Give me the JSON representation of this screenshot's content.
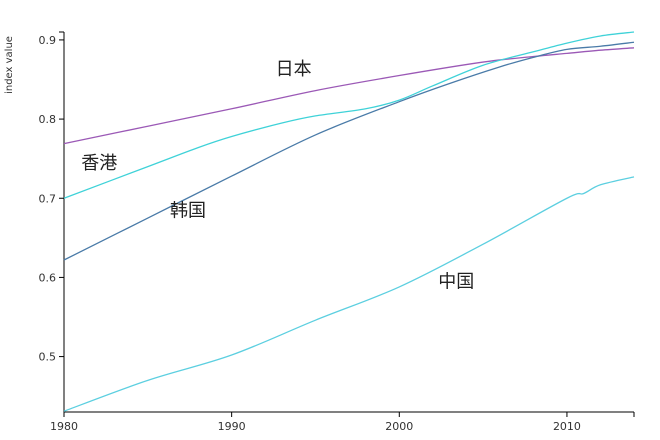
{
  "chart_data": {
    "type": "line",
    "title": "",
    "xlabel": "",
    "ylabel": "index value",
    "xlim": [
      1980,
      2014
    ],
    "ylim": [
      0.43,
      0.91
    ],
    "grid": false,
    "legend": "none",
    "x_ticks": [
      "1980",
      "1990",
      "2000",
      "2010"
    ],
    "y_ticks": [
      "0.5",
      "0.6",
      "0.7",
      "0.8",
      "0.9"
    ],
    "series": [
      {
        "name": "日本",
        "color": "#9b59b6",
        "x": [
          1980,
          1985,
          1990,
          1995,
          2000,
          2005,
          2008,
          2010,
          2012,
          2014
        ],
        "y": [
          0.769,
          0.791,
          0.813,
          0.836,
          0.855,
          0.872,
          0.879,
          0.883,
          0.887,
          0.89
        ]
      },
      {
        "name": "香港",
        "color": "#3fd2d8",
        "x": [
          1980,
          1985,
          1988,
          1990,
          1993,
          1995,
          1998,
          2000,
          2002,
          2005,
          2008,
          2010,
          2012,
          2014
        ],
        "y": [
          0.7,
          0.74,
          0.764,
          0.778,
          0.795,
          0.804,
          0.813,
          0.824,
          0.842,
          0.868,
          0.885,
          0.896,
          0.905,
          0.91
        ]
      },
      {
        "name": "韩国",
        "color": "#4a7ba8",
        "x": [
          1980,
          1985,
          1990,
          1995,
          2000,
          2003,
          2006,
          2008,
          2010,
          2012,
          2014
        ],
        "y": [
          0.622,
          0.675,
          0.728,
          0.78,
          0.822,
          0.845,
          0.866,
          0.878,
          0.888,
          0.892,
          0.897
        ]
      },
      {
        "name": "中国",
        "color": "#5ccfe0",
        "x": [
          1980,
          1985,
          1990,
          1995,
          2000,
          2005,
          2010,
          2011,
          2012,
          2014
        ],
        "y": [
          0.431,
          0.47,
          0.502,
          0.546,
          0.588,
          0.642,
          0.7,
          0.706,
          0.717,
          0.727
        ]
      }
    ],
    "annotations": [
      {
        "text": "日本",
        "x": 1993.7,
        "y": 0.856
      },
      {
        "text": "香港",
        "x": 1982.1,
        "y": 0.737
      },
      {
        "text": "韩国",
        "x": 1987.4,
        "y": 0.677
      },
      {
        "text": "中国",
        "x": 2003.4,
        "y": 0.587
      }
    ]
  }
}
